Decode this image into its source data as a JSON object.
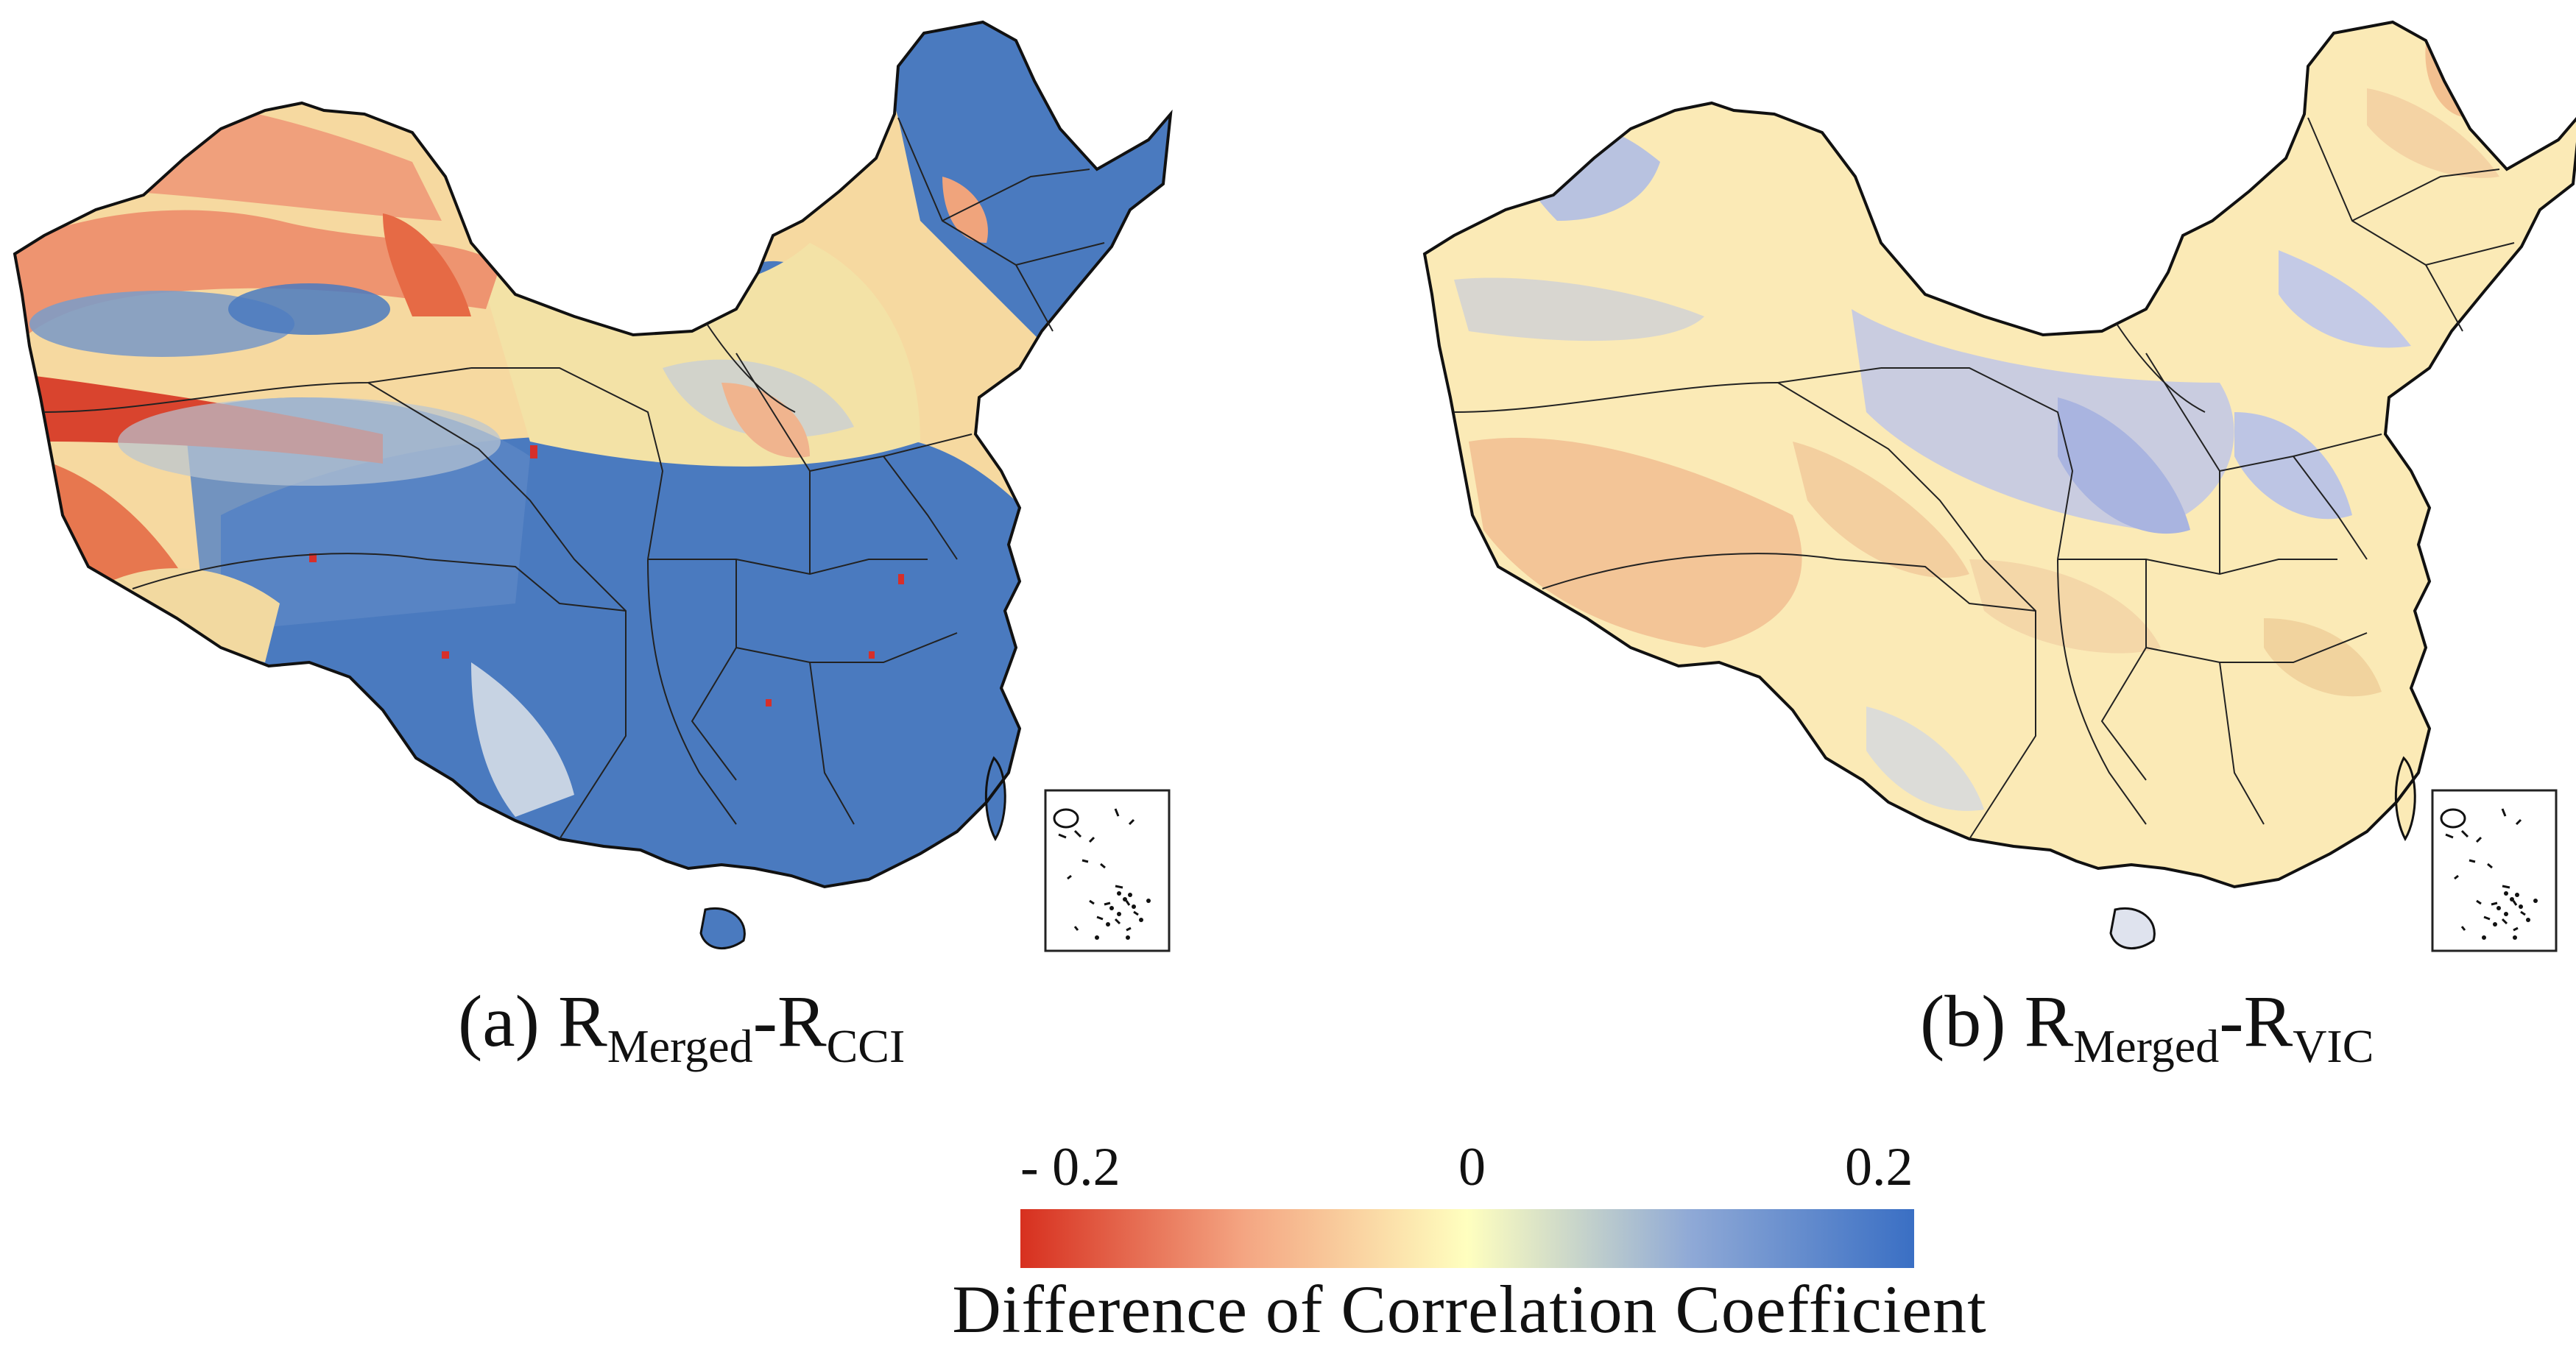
{
  "panels": [
    {
      "id": "a",
      "prefix": "(a) R",
      "sub1": "Merged",
      "mid": "-R",
      "sub2": "CCI",
      "dominant_palette": [
        "#d73027",
        "#f08a5d",
        "#fbe5a6",
        "#9fb6d2",
        "#4a7abf"
      ]
    },
    {
      "id": "b",
      "prefix": "(b) R",
      "sub1": "Merged",
      "mid": "-R",
      "sub2": "VIC",
      "dominant_palette": [
        "#f2b48a",
        "#fbe7b2",
        "#fdf5c9",
        "#c7cde0",
        "#6f86cf"
      ]
    }
  ],
  "colorbar": {
    "min_label": "- 0.2",
    "mid_label": "0",
    "max_label": "0.2",
    "min_value": -0.2,
    "mid_value": 0,
    "max_value": 0.2,
    "title": "Difference of Correlation Coefficient",
    "colors": [
      "#d7301f",
      "#f4a582",
      "#ffffbf",
      "#8fa9d6",
      "#3a6fc4"
    ]
  }
}
